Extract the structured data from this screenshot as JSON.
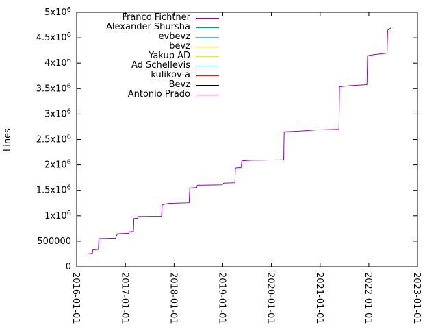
{
  "chart_data": {
    "type": "line",
    "title": "",
    "xlabel": "",
    "ylabel": "Lines",
    "grid": false,
    "legend_position": "top-center-inside",
    "x_range": [
      "2016-01-01",
      "2023-01-01"
    ],
    "y_range": [
      0,
      5000000
    ],
    "x_ticks": [
      "2016-01-01",
      "2017-01-01",
      "2018-01-01",
      "2019-01-01",
      "2020-01-01",
      "2021-01-01",
      "2022-01-01",
      "2023-01-01"
    ],
    "y_ticks": [
      {
        "value": 0,
        "label": "0"
      },
      {
        "value": 500000,
        "label": "500000"
      },
      {
        "value": 1000000,
        "label": "1x10",
        "sup": "6"
      },
      {
        "value": 1500000,
        "label": "1.5x10",
        "sup": "6"
      },
      {
        "value": 2000000,
        "label": "2x10",
        "sup": "6"
      },
      {
        "value": 2500000,
        "label": "2.5x10",
        "sup": "6"
      },
      {
        "value": 3000000,
        "label": "3x10",
        "sup": "6"
      },
      {
        "value": 3500000,
        "label": "3.5x10",
        "sup": "6"
      },
      {
        "value": 4000000,
        "label": "4x10",
        "sup": "6"
      },
      {
        "value": 4500000,
        "label": "4.5x10",
        "sup": "6"
      },
      {
        "value": 5000000,
        "label": "5x10",
        "sup": "6"
      }
    ],
    "series": [
      {
        "name": "Franco Fichtner",
        "color": "#9400d3",
        "points": [
          [
            "2016-03-18",
            248000
          ],
          [
            "2016-04-28",
            260000
          ],
          [
            "2016-05-02",
            330000
          ],
          [
            "2016-06-12",
            338000
          ],
          [
            "2016-06-16",
            552000
          ],
          [
            "2016-10-18",
            560000
          ],
          [
            "2016-11-02",
            645000
          ],
          [
            "2017-01-25",
            655000
          ],
          [
            "2017-02-02",
            685000
          ],
          [
            "2017-03-02",
            690000
          ],
          [
            "2017-03-06",
            948000
          ],
          [
            "2017-04-02",
            952000
          ],
          [
            "2017-04-06",
            985000
          ],
          [
            "2017-09-28",
            990000
          ],
          [
            "2017-10-04",
            1220000
          ],
          [
            "2017-11-20",
            1245000
          ],
          [
            "2018-04-24",
            1258000
          ],
          [
            "2018-04-28",
            1545000
          ],
          [
            "2018-06-20",
            1555000
          ],
          [
            "2018-06-24",
            1598000
          ],
          [
            "2018-12-28",
            1608000
          ],
          [
            "2019-01-08",
            1640000
          ],
          [
            "2019-04-02",
            1648000
          ],
          [
            "2019-04-06",
            1940000
          ],
          [
            "2019-05-20",
            1952000
          ],
          [
            "2019-05-24",
            2080000
          ],
          [
            "2019-08-01",
            2090000
          ],
          [
            "2020-03-28",
            2098000
          ],
          [
            "2020-04-02",
            2110000
          ],
          [
            "2020-04-06",
            2650000
          ],
          [
            "2020-08-01",
            2665000
          ],
          [
            "2020-12-01",
            2688000
          ],
          [
            "2021-05-22",
            2698000
          ],
          [
            "2021-05-26",
            3538000
          ],
          [
            "2021-08-10",
            3558000
          ],
          [
            "2021-12-18",
            3578000
          ],
          [
            "2021-12-22",
            4148000
          ],
          [
            "2022-02-10",
            4168000
          ],
          [
            "2022-05-18",
            4198000
          ],
          [
            "2022-05-22",
            4648000
          ],
          [
            "2022-06-18",
            4700000
          ]
        ]
      },
      {
        "name": "Alexander Shursha",
        "color": "#009e73",
        "points": []
      },
      {
        "name": "evbevz",
        "color": "#56b4e9",
        "points": []
      },
      {
        "name": "bevz",
        "color": "#e69f00",
        "points": []
      },
      {
        "name": "Yakup AD",
        "color": "#f0e442",
        "points": []
      },
      {
        "name": "Ad Schellevis",
        "color": "#0072b2",
        "points": []
      },
      {
        "name": "kulikov-a",
        "color": "#e51e10",
        "points": []
      },
      {
        "name": "Bevz",
        "color": "#000000",
        "points": []
      },
      {
        "name": "Antonio Prado",
        "color": "#9400d3",
        "points": []
      }
    ],
    "axis_color": "#000000"
  }
}
